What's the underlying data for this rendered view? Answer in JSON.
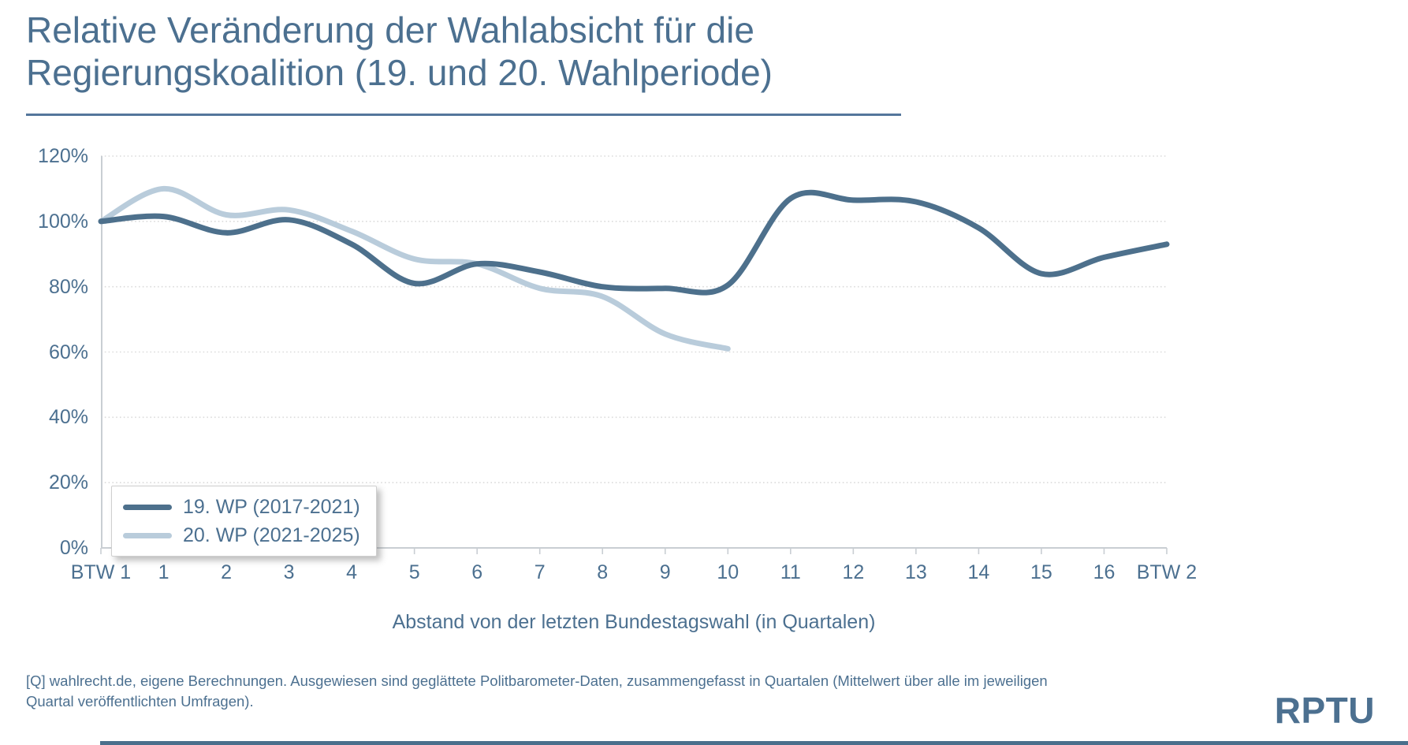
{
  "title": {
    "line1": "Relative Veränderung der Wahlabsicht für die",
    "line2": "Regierungskoalition (19. und 20. Wahlperiode)"
  },
  "footnote": "[Q] wahlrecht.de, eigene Berechnungen. Ausgewiesen sind geglättete Politbarometer-Daten, zusammengefasst in Quartalen (Mittelwert über alle im jeweiligen Quartal veröffentlichten Umfragen).",
  "logo_text": "RPTU",
  "colors": {
    "text": "#4C7090",
    "series_dark": "#4D708C",
    "series_light": "#B9CCDB",
    "grid": "#DBDBDB",
    "axis": "#C9CED3",
    "title_rule": "#54769B",
    "bottom_rule": "#4A6F8C"
  },
  "chart_data": {
    "type": "line",
    "title": "Relative Veränderung der Wahlabsicht für die Regierungskoalition (19. und 20. Wahlperiode)",
    "xlabel": "Abstand von der letzten Bundestagswahl (in Quartalen)",
    "ylabel": "",
    "x_tick_labels": [
      "BTW 1",
      "1",
      "2",
      "3",
      "4",
      "5",
      "6",
      "7",
      "8",
      "9",
      "10",
      "11",
      "12",
      "13",
      "14",
      "15",
      "16",
      "BTW 2"
    ],
    "y_ticks_percent": [
      0,
      20,
      40,
      60,
      80,
      100,
      120
    ],
    "xlim": [
      0,
      17
    ],
    "ylim": [
      0,
      120
    ],
    "grid": "horizontal-dotted",
    "legend_position": "inside-bottom-left",
    "series": [
      {
        "name": "19. WP (2017-2021)",
        "color_key": "series_dark",
        "x": [
          0,
          1,
          2,
          3,
          4,
          5,
          6,
          7,
          8,
          9,
          10,
          11,
          12,
          13,
          14,
          15,
          16,
          17
        ],
        "values": [
          100,
          101.5,
          96.5,
          100.5,
          93,
          81,
          87,
          84.5,
          80,
          79.5,
          80.5,
          107,
          106.5,
          106,
          98,
          84,
          89,
          93
        ]
      },
      {
        "name": "20. WP (2021-2025)",
        "color_key": "series_light",
        "x": [
          0,
          1,
          2,
          3,
          4,
          5,
          6,
          7,
          8,
          9,
          10
        ],
        "values": [
          100,
          110,
          102,
          103.5,
          97,
          88.5,
          87,
          79.5,
          77,
          65.5,
          61
        ]
      }
    ]
  }
}
